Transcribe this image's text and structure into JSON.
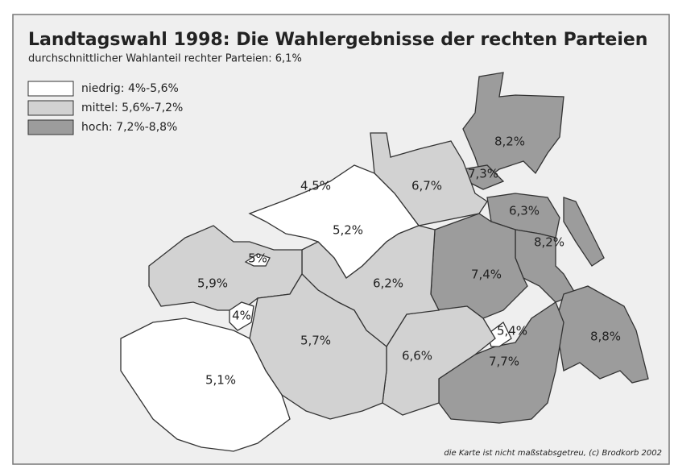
{
  "header": {
    "title": "Landtagswahl 1998: Die Wahlergebnisse der rechten Parteien",
    "subtitle": "durchschnittlicher Wahlanteil rechter Parteien: 6,1%"
  },
  "legend": [
    {
      "label": "niedrig: 4%-5,6%"
    },
    {
      "label": "mittel: 5,6%-7,2%"
    },
    {
      "label": "hoch: 7,2%-8,8%"
    }
  ],
  "regions": [
    {
      "label": "8,2%"
    },
    {
      "label": "7,3%"
    },
    {
      "label": "6,7%"
    },
    {
      "label": "4,5%"
    },
    {
      "label": "5,2%"
    },
    {
      "label": "6,3%"
    },
    {
      "label": "8,2%"
    },
    {
      "label": "5%"
    },
    {
      "label": "5,9%"
    },
    {
      "label": "6,2%"
    },
    {
      "label": "7,4%"
    },
    {
      "label": "4%"
    },
    {
      "label": "5,7%"
    },
    {
      "label": "5,4%"
    },
    {
      "label": "8,8%"
    },
    {
      "label": "6,6%"
    },
    {
      "label": "7,7%"
    },
    {
      "label": "5,1%"
    }
  ],
  "footer": "die Karte ist nicht maßstabsgetreu, (c) Brodkorb 2002"
}
